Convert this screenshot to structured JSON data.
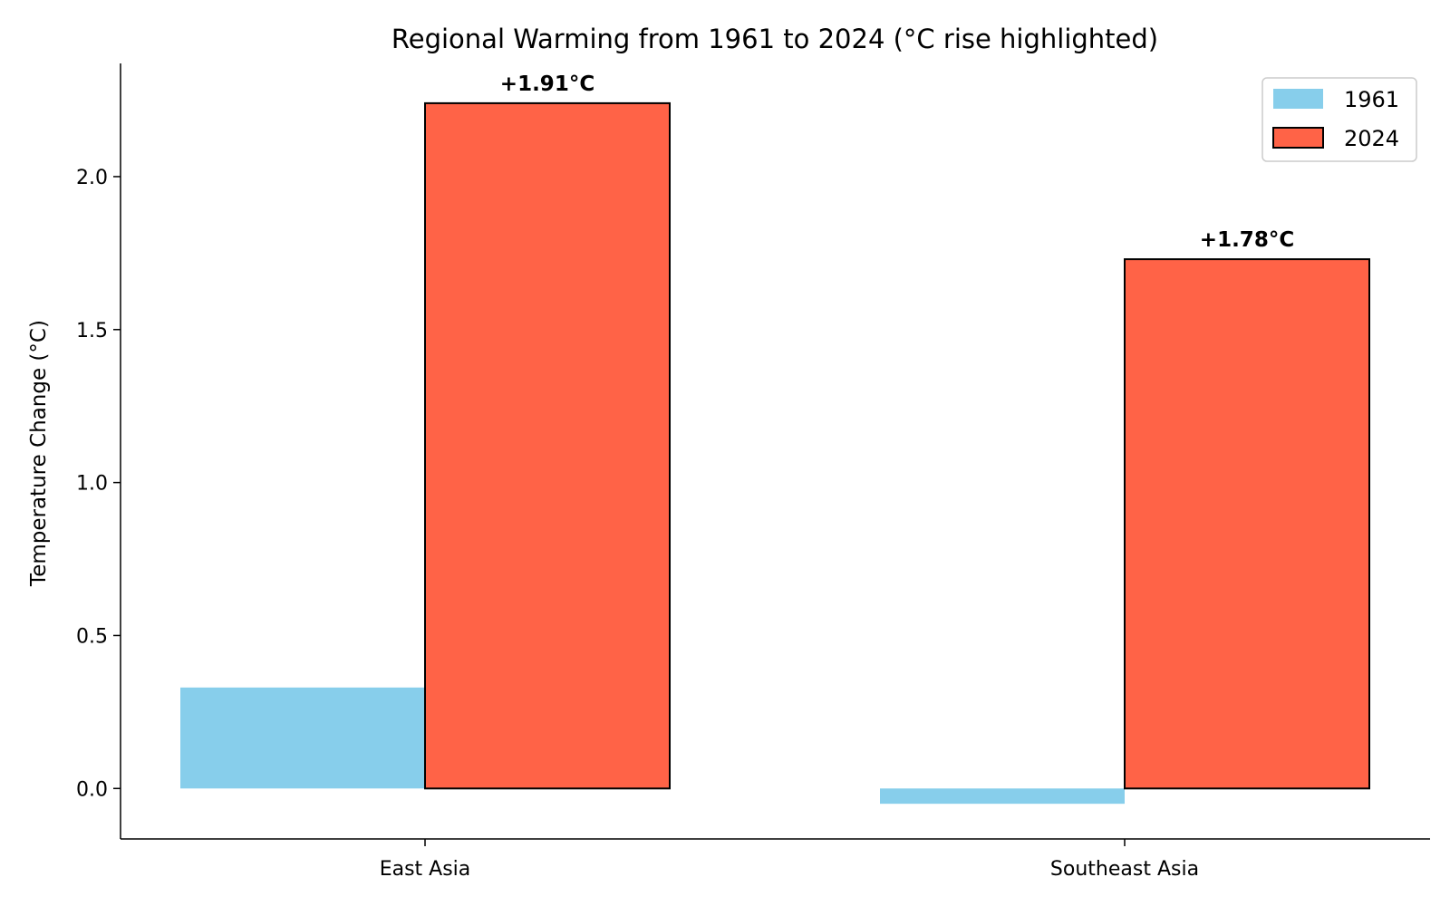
{
  "chart_data": {
    "type": "bar",
    "title": "Regional Warming from 1961 to 2024 (°C rise highlighted)",
    "xlabel": "",
    "ylabel": "Temperature Change (°C)",
    "categories": [
      "East Asia",
      "Southeast Asia"
    ],
    "series": [
      {
        "name": "1961",
        "values": [
          0.33,
          -0.05
        ],
        "color": "#87CEEB"
      },
      {
        "name": "2024",
        "values": [
          2.24,
          1.73
        ],
        "color": "#FF6347"
      }
    ],
    "annotations": [
      "+1.91°C",
      "+1.78°C"
    ],
    "ylim": [
      -0.165,
      2.37
    ],
    "yticks": [
      0.0,
      0.5,
      1.0,
      1.5,
      2.0
    ],
    "ytick_labels": [
      "0.0",
      "0.5",
      "1.0",
      "1.5",
      "2.0"
    ],
    "grid": false,
    "legend_position": "top-right"
  }
}
